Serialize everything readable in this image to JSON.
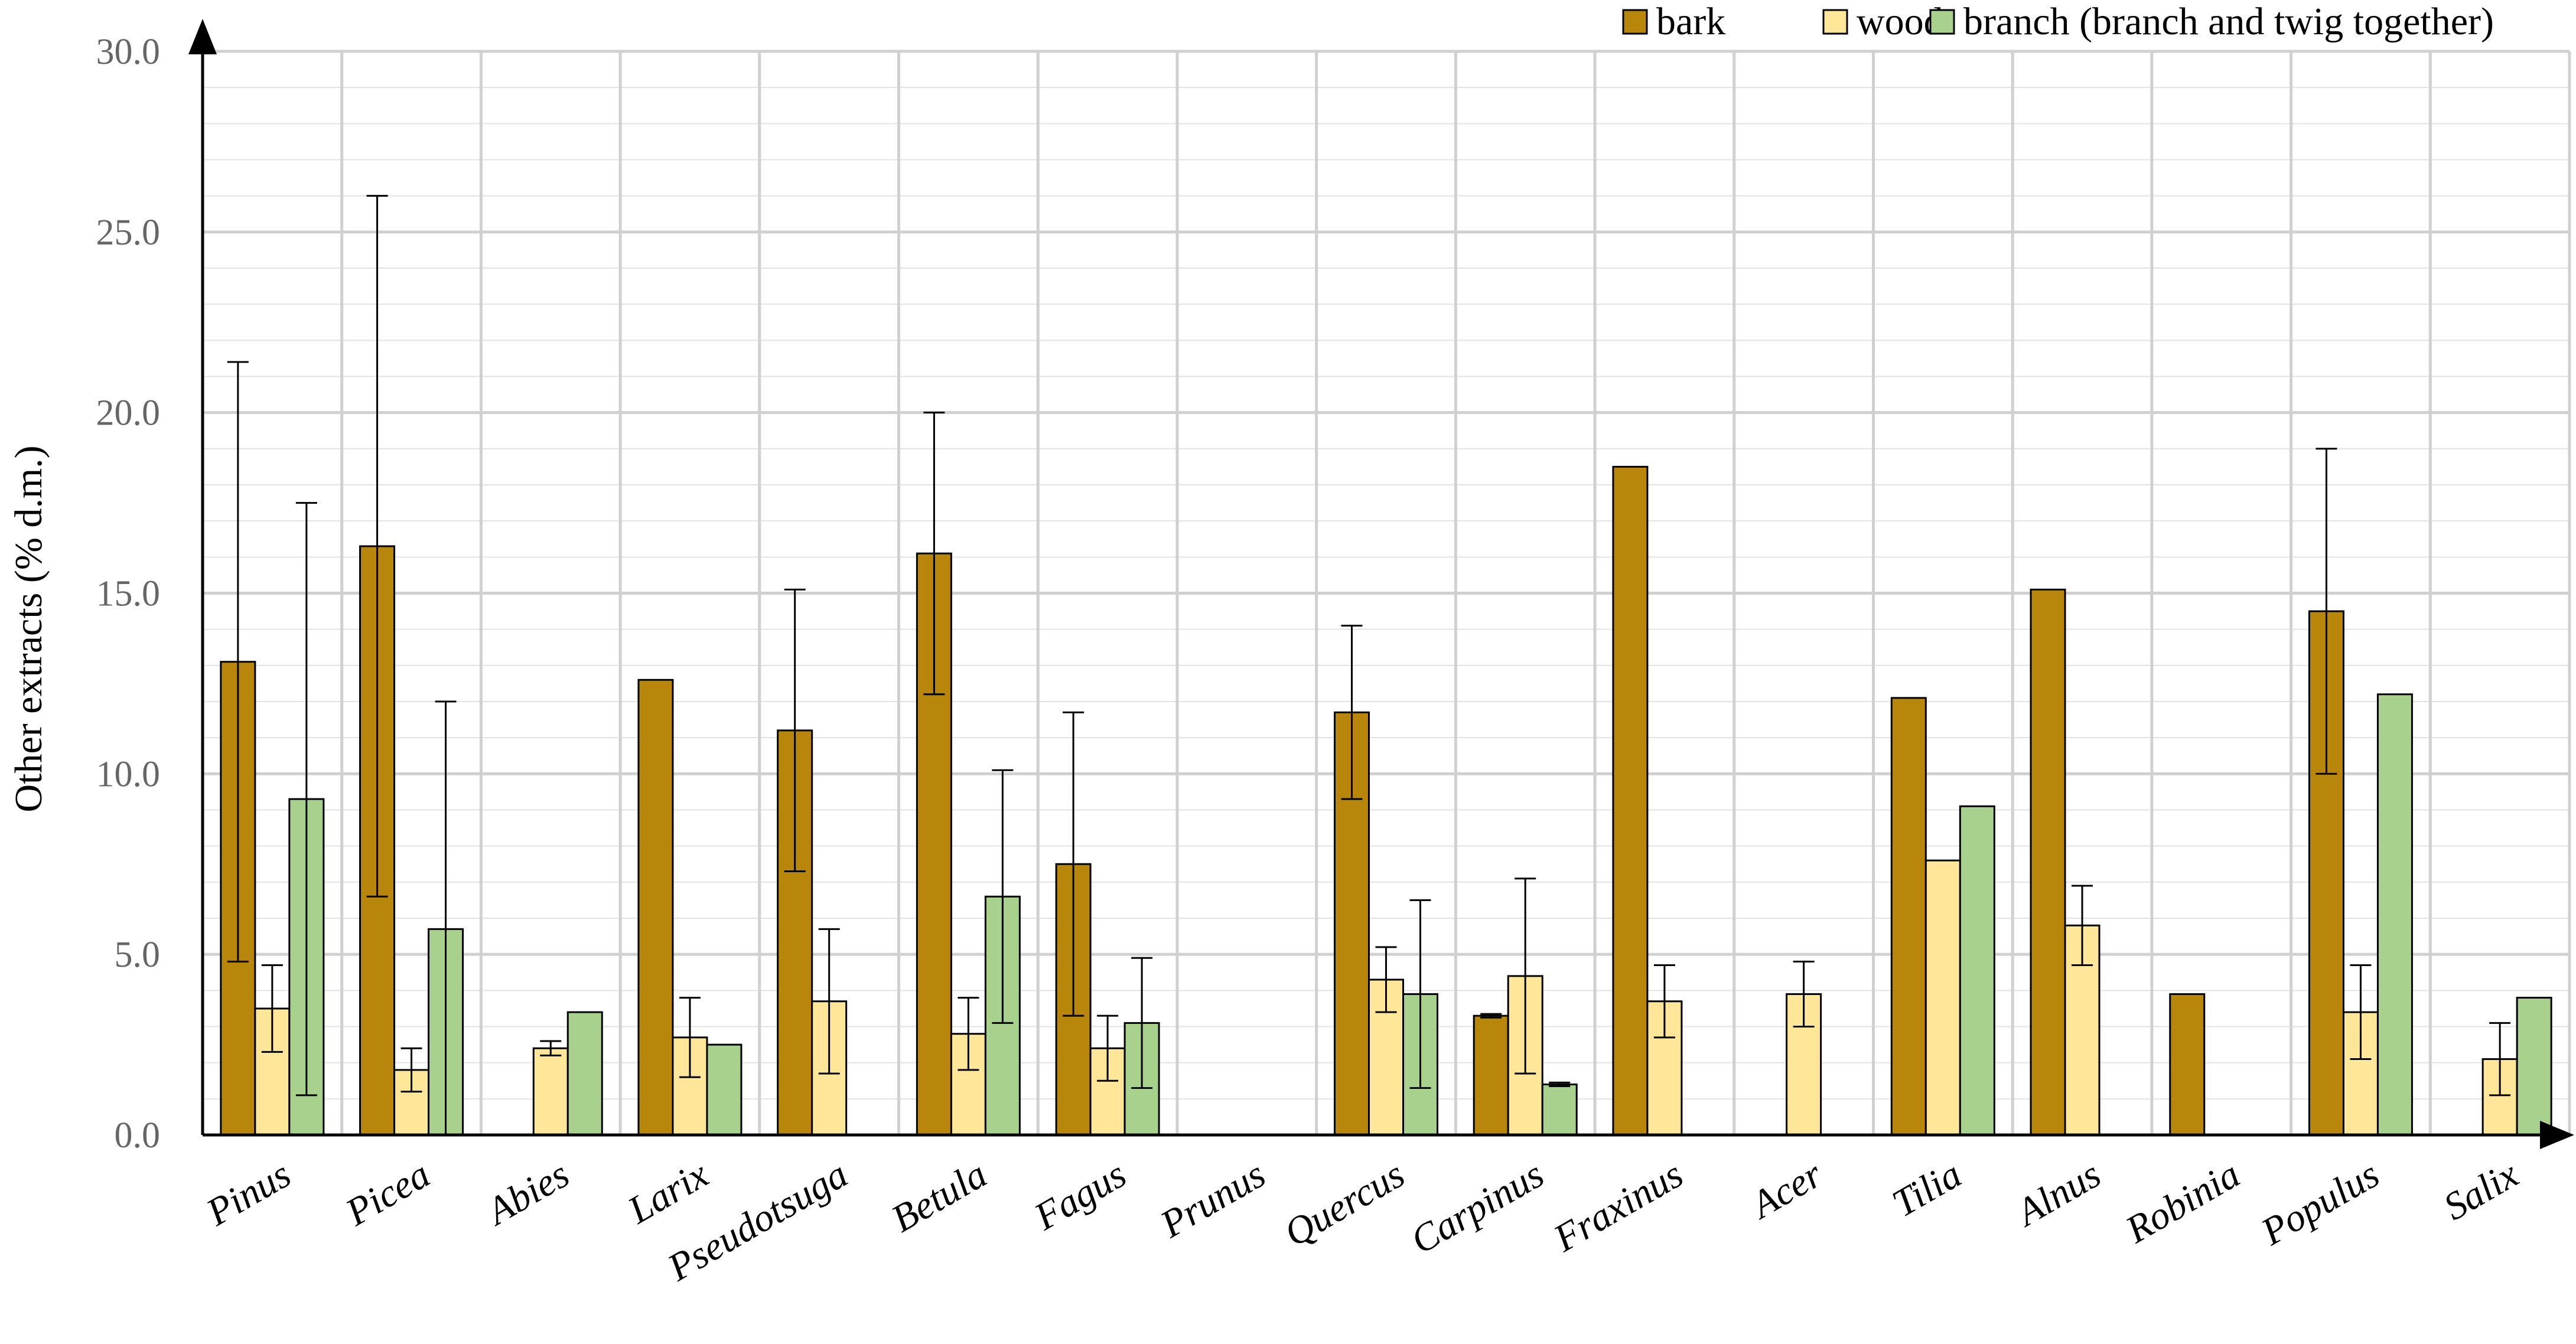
{
  "chart_data": {
    "type": "bar",
    "title": "",
    "xlabel": "",
    "ylabel": "Other extracts (% d.m.)",
    "ylim": [
      0,
      30
    ],
    "yticks": [
      "0.0",
      "5.0",
      "10.0",
      "15.0",
      "20.0",
      "25.0",
      "30.0"
    ],
    "grid": true,
    "legend_position": "top-right",
    "categories": [
      "Pinus",
      "Picea",
      "Abies",
      "Larix",
      "Pseudotsuga",
      "Betula",
      "Fagus",
      "Prunus",
      "Quercus",
      "Carpinus",
      "Fraxinus",
      "Acer",
      "Tilia",
      "Alnus",
      "Robinia",
      "Populus",
      "Salix"
    ],
    "series": [
      {
        "name": "bark",
        "color": "#B8860B",
        "values": [
          13.1,
          16.3,
          null,
          12.6,
          11.2,
          16.1,
          7.5,
          null,
          11.7,
          3.3,
          18.5,
          null,
          12.1,
          15.1,
          3.9,
          14.5,
          null
        ],
        "errors": [
          8.3,
          9.7,
          null,
          null,
          3.9,
          3.9,
          4.2,
          null,
          2.4,
          0.05,
          null,
          null,
          null,
          null,
          null,
          4.5,
          null
        ]
      },
      {
        "name": "wood",
        "color": "#FFE699",
        "values": [
          3.5,
          1.8,
          2.4,
          2.7,
          3.7,
          2.8,
          2.4,
          null,
          4.3,
          4.4,
          3.7,
          3.9,
          7.6,
          5.8,
          null,
          3.4,
          2.1
        ],
        "errors": [
          1.2,
          0.6,
          0.2,
          1.1,
          2.0,
          1.0,
          0.9,
          null,
          0.9,
          2.7,
          1.0,
          0.9,
          null,
          1.1,
          null,
          1.3,
          1.0
        ]
      },
      {
        "name": "branch (branch and twig together)",
        "color": "#A9D18E",
        "values": [
          9.3,
          5.7,
          3.4,
          2.5,
          null,
          6.6,
          3.1,
          null,
          3.9,
          1.4,
          null,
          null,
          9.1,
          null,
          null,
          12.2,
          3.8
        ],
        "errors": [
          8.2,
          6.3,
          null,
          null,
          null,
          3.5,
          1.8,
          null,
          2.6,
          0.05,
          null,
          null,
          null,
          null,
          null,
          null,
          null
        ]
      }
    ]
  }
}
